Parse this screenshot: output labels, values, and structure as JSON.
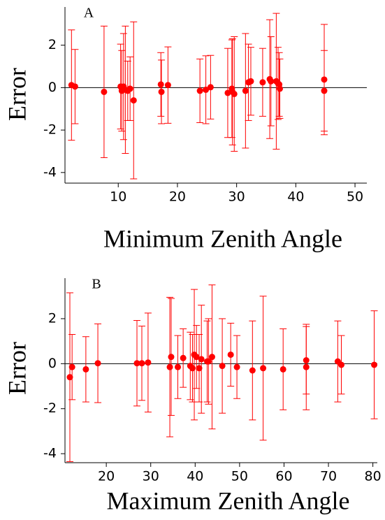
{
  "chart_data": [
    {
      "type": "scatter",
      "panel_label": "A",
      "x_label": "Minimum Zenith Angle",
      "y_label": "Error",
      "xlim": [
        1,
        52
      ],
      "ylim": [
        -4.5,
        3.8
      ],
      "xticks": [
        10,
        20,
        30,
        40,
        50
      ],
      "yticks": [
        -4,
        -2,
        0,
        2
      ],
      "series": [
        {
          "color": "#ff0000",
          "x": [
            2.1,
            2.7,
            7.6,
            10.4,
            10.6,
            10.9,
            11.2,
            11.6,
            12.0,
            12.6,
            17.2,
            17.3,
            18.4,
            23.8,
            24.8,
            25.6,
            28.5,
            29.2,
            29.3,
            29.6,
            31.5,
            32.0,
            32.4,
            34.4,
            35.6,
            35.8,
            36.7,
            37.0,
            37.2,
            37.3,
            44.8,
            44.8
          ],
          "values": [
            0.12,
            0.05,
            -0.2,
            0.05,
            -0.15,
            0.05,
            -0.1,
            -0.15,
            -0.05,
            -0.6,
            0.15,
            -0.2,
            0.12,
            -0.15,
            -0.1,
            0.02,
            -0.25,
            -0.05,
            -0.2,
            -0.3,
            -0.15,
            0.25,
            0.3,
            0.25,
            0.4,
            0.3,
            0.3,
            0.2,
            0.15,
            -0.05,
            0.38,
            -0.15
          ],
          "error": [
            2.6,
            1.75,
            3.1,
            2.0,
            1.9,
            2.5,
            3.0,
            1.4,
            1.5,
            3.7,
            1.5,
            1.5,
            1.8,
            1.5,
            1.6,
            1.5,
            2.1,
            2.3,
            2.5,
            2.7,
            2.7,
            1.8,
            1.6,
            1.6,
            2.8,
            2.1,
            3.2,
            1.7,
            1.5,
            1.4,
            2.6,
            1.9
          ]
        }
      ]
    },
    {
      "type": "scatter",
      "panel_label": "B",
      "x_label": "Maximum Zenith Angle",
      "y_label": "Error",
      "xlim": [
        10.7,
        81
      ],
      "ylim": [
        -4.4,
        3.8
      ],
      "xticks": [
        20,
        30,
        40,
        50,
        60,
        70,
        80
      ],
      "yticks": [
        -4,
        -2,
        0,
        2
      ],
      "series": [
        {
          "color": "#ff0000",
          "x": [
            11.8,
            12.3,
            15.4,
            18.1,
            26.9,
            28.0,
            29.4,
            34.3,
            34.6,
            36.1,
            37.3,
            38.9,
            39.4,
            39.8,
            40.3,
            40.9,
            41.4,
            42.7,
            43.0,
            43.8,
            46.1,
            48.0,
            49.4,
            52.9,
            55.3,
            59.8,
            65.0,
            65.0,
            72.1,
            72.9,
            80.3
          ],
          "values": [
            -0.6,
            -0.15,
            -0.25,
            0.02,
            0.02,
            0.02,
            0.05,
            -0.15,
            0.3,
            -0.15,
            0.25,
            -0.1,
            -0.2,
            0.4,
            0.3,
            -0.2,
            0.2,
            0.1,
            0.1,
            0.3,
            -0.1,
            0.4,
            -0.15,
            -0.3,
            -0.2,
            -0.25,
            0.15,
            -0.15,
            0.1,
            -0.05,
            -0.05
          ],
          "error": [
            3.75,
            1.45,
            1.45,
            1.75,
            1.9,
            1.65,
            2.2,
            3.1,
            2.6,
            1.4,
            1.3,
            1.5,
            1.5,
            2.9,
            1.4,
            1.5,
            2.4,
            1.8,
            1.9,
            3.2,
            2.1,
            1.4,
            1.4,
            2.2,
            3.2,
            1.8,
            1.5,
            1.9,
            1.8,
            1.3,
            2.4
          ]
        }
      ]
    }
  ]
}
